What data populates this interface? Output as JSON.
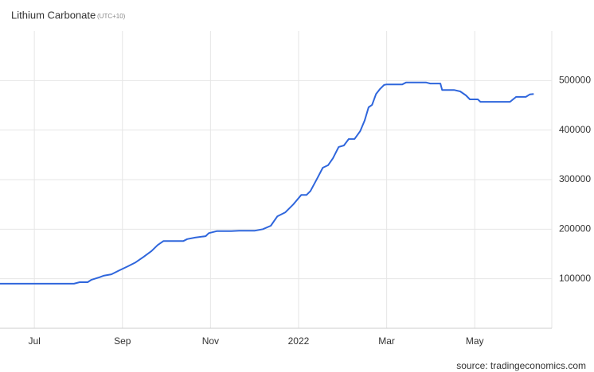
{
  "chart_data": {
    "type": "line",
    "title": "Lithium Carbonate",
    "subtitle": "(UTC+10)",
    "source": "source: tradingeconomics.com",
    "x": [
      -0.78,
      0.9,
      1.03,
      1.21,
      1.3,
      1.48,
      1.57,
      1.75,
      1.93,
      2.12,
      2.3,
      2.48,
      2.66,
      2.8,
      2.93,
      3.38,
      3.47,
      3.65,
      3.89,
      3.96,
      4.14,
      4.47,
      4.65,
      5.01,
      5.19,
      5.37,
      5.52,
      5.7,
      5.88,
      6.06,
      6.18,
      6.27,
      6.42,
      6.55,
      6.67,
      6.78,
      6.91,
      7.03,
      7.14,
      7.27,
      7.4,
      7.5,
      7.59,
      7.67,
      7.76,
      7.85,
      7.94,
      7.99,
      8.35,
      8.44,
      8.9,
      8.99,
      9.22,
      9.26,
      9.53,
      9.67,
      9.8,
      9.89,
      10.07,
      10.13,
      10.8,
      10.94,
      11.16,
      11.25,
      11.34
    ],
    "series": [
      {
        "name": "Lithium Carbonate",
        "color": "#2f66dc",
        "values": [
          90000,
          90000,
          93000,
          93000,
          98000,
          103000,
          106000,
          109000,
          117000,
          125000,
          133000,
          144000,
          156000,
          168000,
          176000,
          176000,
          180000,
          183000,
          186000,
          192000,
          196000,
          196000,
          197000,
          197000,
          200000,
          207000,
          226000,
          234000,
          250000,
          269000,
          269000,
          277000,
          302000,
          324000,
          329000,
          343000,
          366000,
          369000,
          382000,
          382000,
          398000,
          419000,
          446000,
          451000,
          473000,
          483000,
          491000,
          492000,
          492000,
          496000,
          496000,
          494000,
          494000,
          481000,
          481000,
          478000,
          470000,
          462000,
          462000,
          457000,
          457000,
          467000,
          467000,
          472000,
          473000
        ]
      }
    ],
    "xlim": [
      -0.78,
      11.75
    ],
    "xticks": [
      {
        "value": 0,
        "label": "Jul"
      },
      {
        "value": 2,
        "label": "Sep"
      },
      {
        "value": 4,
        "label": "Nov"
      },
      {
        "value": 6,
        "label": "2022"
      },
      {
        "value": 8,
        "label": "Mar"
      },
      {
        "value": 10,
        "label": "May"
      }
    ],
    "ylim": [
      0,
      600000
    ],
    "yticks": [
      100000,
      200000,
      300000,
      400000,
      500000
    ],
    "grid": true
  }
}
